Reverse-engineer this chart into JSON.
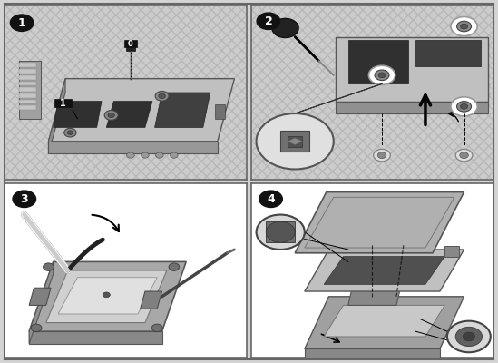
{
  "fig_bg": "#d4d4d4",
  "panel_bg": "#ffffff",
  "border_color": "#666666",
  "border_lw": 1.5,
  "outer_bg": "#c8c8c8",
  "hatch_color": "#b0b0b0",
  "panel_divider": "#888888",
  "label_bg": "#111111",
  "label_fg": "#ffffff",
  "board_color": "#b8b8b8",
  "board_dark": "#383838",
  "board_mid": "#606060",
  "chassis_bg": "#d0d0d0",
  "screw_color": "#888888",
  "white_lever": "#f5f5f5",
  "panels": [
    "1",
    "2",
    "3",
    "4"
  ]
}
